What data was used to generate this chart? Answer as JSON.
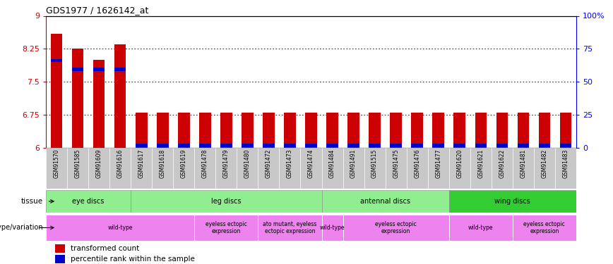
{
  "title": "GDS1977 / 1626142_at",
  "samples": [
    "GSM91570",
    "GSM91585",
    "GSM91609",
    "GSM91616",
    "GSM91617",
    "GSM91618",
    "GSM91619",
    "GSM91478",
    "GSM91479",
    "GSM91480",
    "GSM91472",
    "GSM91473",
    "GSM91474",
    "GSM91484",
    "GSM91491",
    "GSM91515",
    "GSM91475",
    "GSM91476",
    "GSM91477",
    "GSM91620",
    "GSM91621",
    "GSM91622",
    "GSM91481",
    "GSM91482",
    "GSM91483"
  ],
  "red_values": [
    8.6,
    8.25,
    8.0,
    8.35,
    6.8,
    6.8,
    6.8,
    6.8,
    6.8,
    6.8,
    6.8,
    6.8,
    6.8,
    6.8,
    6.8,
    6.8,
    6.8,
    6.8,
    6.8,
    6.8,
    6.8,
    6.8,
    6.8,
    6.8,
    6.8
  ],
  "blue_values": [
    7.95,
    7.75,
    7.75,
    7.75,
    6.02,
    6.02,
    6.02,
    6.02,
    6.02,
    6.02,
    6.02,
    6.02,
    6.02,
    6.02,
    6.02,
    6.02,
    6.02,
    6.02,
    6.02,
    6.02,
    6.02,
    6.02,
    6.02,
    6.02,
    6.02
  ],
  "ymin": 6.0,
  "ymax": 9.0,
  "yticks": [
    6.0,
    6.75,
    7.5,
    8.25,
    9.0
  ],
  "ytick_labels": [
    "6",
    "6.75",
    "7.5",
    "8.25",
    "9"
  ],
  "right_ytick_labels": [
    "0",
    "25",
    "50",
    "75",
    "100%"
  ],
  "tissue_groups": [
    {
      "label": "eye discs",
      "start": 0,
      "end": 4,
      "color": "#90EE90"
    },
    {
      "label": "leg discs",
      "start": 4,
      "end": 13,
      "color": "#90EE90"
    },
    {
      "label": "antennal discs",
      "start": 13,
      "end": 19,
      "color": "#90EE90"
    },
    {
      "label": "wing discs",
      "start": 19,
      "end": 25,
      "color": "#33CC33"
    }
  ],
  "genotype_groups": [
    {
      "label": "wild-type",
      "start": 0,
      "end": 7
    },
    {
      "label": "eyeless ectopic\nexpression",
      "start": 7,
      "end": 10
    },
    {
      "label": "ato mutant, eyeless\nectopic expression",
      "start": 10,
      "end": 13
    },
    {
      "label": "wild-type",
      "start": 13,
      "end": 14
    },
    {
      "label": "eyeless ectopic\nexpression",
      "start": 14,
      "end": 19
    },
    {
      "label": "wild-type",
      "start": 19,
      "end": 22
    },
    {
      "label": "eyeless ectopic\nexpression",
      "start": 22,
      "end": 25
    }
  ],
  "bar_color": "#CC0000",
  "blue_color": "#0000CC",
  "tissue_light_color": "#90EE90",
  "tissue_dark_color": "#33CC33",
  "genotype_color": "#EE82EE",
  "xlabel_bg_color": "#C8C8C8",
  "background_color": "#FFFFFF",
  "plot_bg_color": "#FFFFFF",
  "left_label_color": "#555555"
}
